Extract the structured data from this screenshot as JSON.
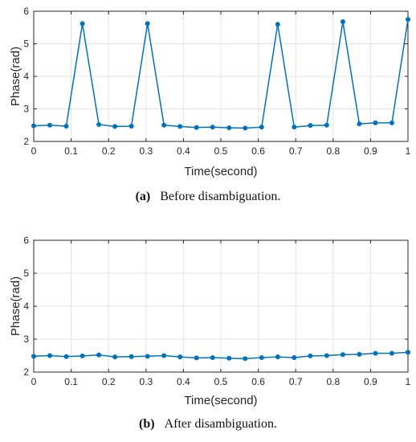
{
  "colors": {
    "series": "#0072BD"
  },
  "chart_data": [
    {
      "type": "line",
      "caption_letter": "(a)",
      "caption_text": "Before disambiguation.",
      "xlabel": "Time(second)",
      "ylabel": "Phase(rad)",
      "xlim": [
        0,
        1
      ],
      "ylim": [
        2,
        6
      ],
      "xticks": [
        "0",
        "0.1",
        "0.2",
        "0.3",
        "0.4",
        "0.5",
        "0.6",
        "0.7",
        "0.8",
        "0.9",
        "1"
      ],
      "yticks": [
        "2",
        "3",
        "4",
        "5",
        "6"
      ],
      "grid": true,
      "x": [
        0.0,
        0.043,
        0.087,
        0.13,
        0.174,
        0.217,
        0.261,
        0.304,
        0.348,
        0.391,
        0.435,
        0.478,
        0.522,
        0.565,
        0.609,
        0.652,
        0.696,
        0.739,
        0.783,
        0.826,
        0.87,
        0.913,
        0.957,
        1.0
      ],
      "y": [
        2.48,
        2.5,
        2.47,
        5.62,
        2.52,
        2.46,
        2.47,
        5.62,
        2.5,
        2.46,
        2.43,
        2.44,
        2.42,
        2.41,
        2.44,
        5.6,
        2.44,
        2.49,
        2.5,
        5.68,
        2.54,
        2.57,
        2.57,
        5.75
      ]
    },
    {
      "type": "line",
      "caption_letter": "(b)",
      "caption_text": "After disambiguation.",
      "xlabel": "Time(second)",
      "ylabel": "Phase(rad)",
      "xlim": [
        0,
        1
      ],
      "ylim": [
        2,
        6
      ],
      "xticks": [
        "0",
        "0.1",
        "0.2",
        "0.3",
        "0.4",
        "0.5",
        "0.6",
        "0.7",
        "0.8",
        "0.9",
        "1"
      ],
      "yticks": [
        "2",
        "3",
        "4",
        "5",
        "6"
      ],
      "grid": true,
      "x": [
        0.0,
        0.043,
        0.087,
        0.13,
        0.174,
        0.217,
        0.261,
        0.304,
        0.348,
        0.391,
        0.435,
        0.478,
        0.522,
        0.565,
        0.609,
        0.652,
        0.696,
        0.739,
        0.783,
        0.826,
        0.87,
        0.913,
        0.957,
        1.0
      ],
      "y": [
        2.48,
        2.5,
        2.47,
        2.49,
        2.52,
        2.46,
        2.47,
        2.48,
        2.5,
        2.46,
        2.43,
        2.44,
        2.42,
        2.41,
        2.44,
        2.46,
        2.44,
        2.49,
        2.5,
        2.53,
        2.54,
        2.57,
        2.57,
        2.6
      ]
    }
  ]
}
